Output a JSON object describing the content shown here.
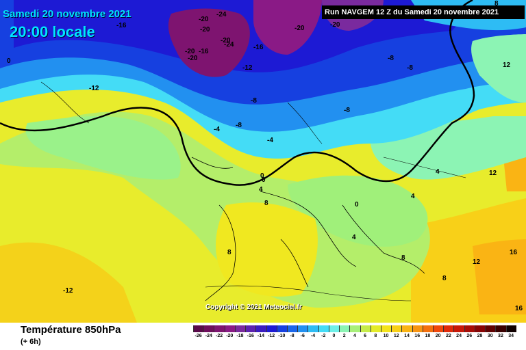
{
  "header": {
    "date": "Samedi 20 novembre 2021",
    "time": "20:00 locale",
    "run_info": "Run NAVGEM 12 Z du Samedi 20 novembre 2021"
  },
  "copyright": "Copyright © 2021 Meteociel.fr",
  "legend": {
    "title": "Température 850hPa",
    "subtitle": "(+ 6h)",
    "ticks": [
      "-26",
      "-24",
      "-22",
      "-20",
      "-18",
      "-16",
      "-14",
      "-12",
      "-10",
      "-8",
      "-6",
      "-4",
      "-2",
      "0",
      "2",
      "4",
      "6",
      "8",
      "10",
      "12",
      "14",
      "16",
      "18",
      "20",
      "22",
      "24",
      "26",
      "28",
      "30",
      "32",
      "34"
    ],
    "colors": [
      "#5a0a4a",
      "#6e0e5c",
      "#7e1470",
      "#8a1a86",
      "#7a2a9e",
      "#5c22b0",
      "#3a1cc0",
      "#1d1ad4",
      "#1640e0",
      "#1a66ea",
      "#2290f0",
      "#2ebcf4",
      "#44dcf6",
      "#6ef0e8",
      "#8cf4b4",
      "#a8f07a",
      "#c6ec4a",
      "#e4ec2a",
      "#f4e41c",
      "#f8d018",
      "#fab414",
      "#f89412",
      "#f4700e",
      "#f0480c",
      "#e02a0a",
      "#c81808",
      "#a80c06",
      "#880404",
      "#600202",
      "#3a0000",
      "#100000"
    ]
  },
  "map_labels": [
    {
      "text": "-16"
    },
    {
      "text": "-24"
    },
    {
      "text": "-20"
    },
    {
      "text": "-20"
    },
    {
      "text": "-20"
    },
    {
      "text": "-20"
    },
    {
      "text": "-16"
    },
    {
      "text": "-20"
    },
    {
      "text": "-24"
    },
    {
      "text": "-16"
    },
    {
      "text": "-12"
    },
    {
      "text": "-12"
    },
    {
      "text": "-20"
    },
    {
      "text": "-20"
    },
    {
      "text": "-8"
    },
    {
      "text": "-8"
    },
    {
      "text": "-8"
    },
    {
      "text": "-8"
    },
    {
      "text": "-4"
    },
    {
      "text": "-8"
    },
    {
      "text": "-4"
    },
    {
      "text": "0"
    },
    {
      "text": "4"
    },
    {
      "text": "8"
    },
    {
      "text": "0"
    },
    {
      "text": "4"
    },
    {
      "text": "4"
    },
    {
      "text": "8"
    },
    {
      "text": "8"
    },
    {
      "text": "8"
    },
    {
      "text": "12"
    },
    {
      "text": "12"
    },
    {
      "text": "12"
    },
    {
      "text": "16"
    },
    {
      "text": "16"
    },
    {
      "text": "-12"
    },
    {
      "text": "0"
    },
    {
      "text": "4"
    },
    {
      "text": "8"
    },
    {
      "text": "0"
    }
  ]
}
